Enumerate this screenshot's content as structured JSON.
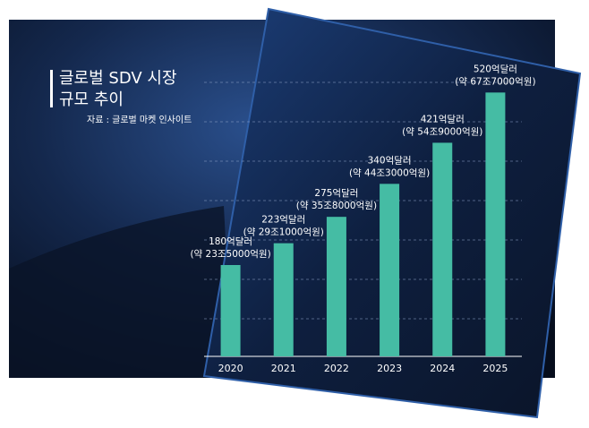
{
  "chart_data": {
    "type": "bar",
    "title": [
      "글로벌 SDV 시장",
      "규모 추이"
    ],
    "source": "자료 : 글로벌 마켓 인사이트",
    "categories": [
      "2020",
      "2021",
      "2022",
      "2023",
      "2024",
      "2025"
    ],
    "values": [
      180,
      223,
      275,
      340,
      421,
      520
    ],
    "value_labels": [
      "180억달러",
      "223억달러",
      "275억달러",
      "340억달러",
      "421억달러",
      "520억달러"
    ],
    "won_labels": [
      "(약 23조5000억원)",
      "(약 29조1000억원)",
      "(약 35조8000억원)",
      "(약 44조3000억원)",
      "(약 54조9000억원)",
      "(약 67조7000억원)"
    ],
    "color": "#45bca4",
    "ylim": [
      0,
      600
    ],
    "grid": true
  }
}
